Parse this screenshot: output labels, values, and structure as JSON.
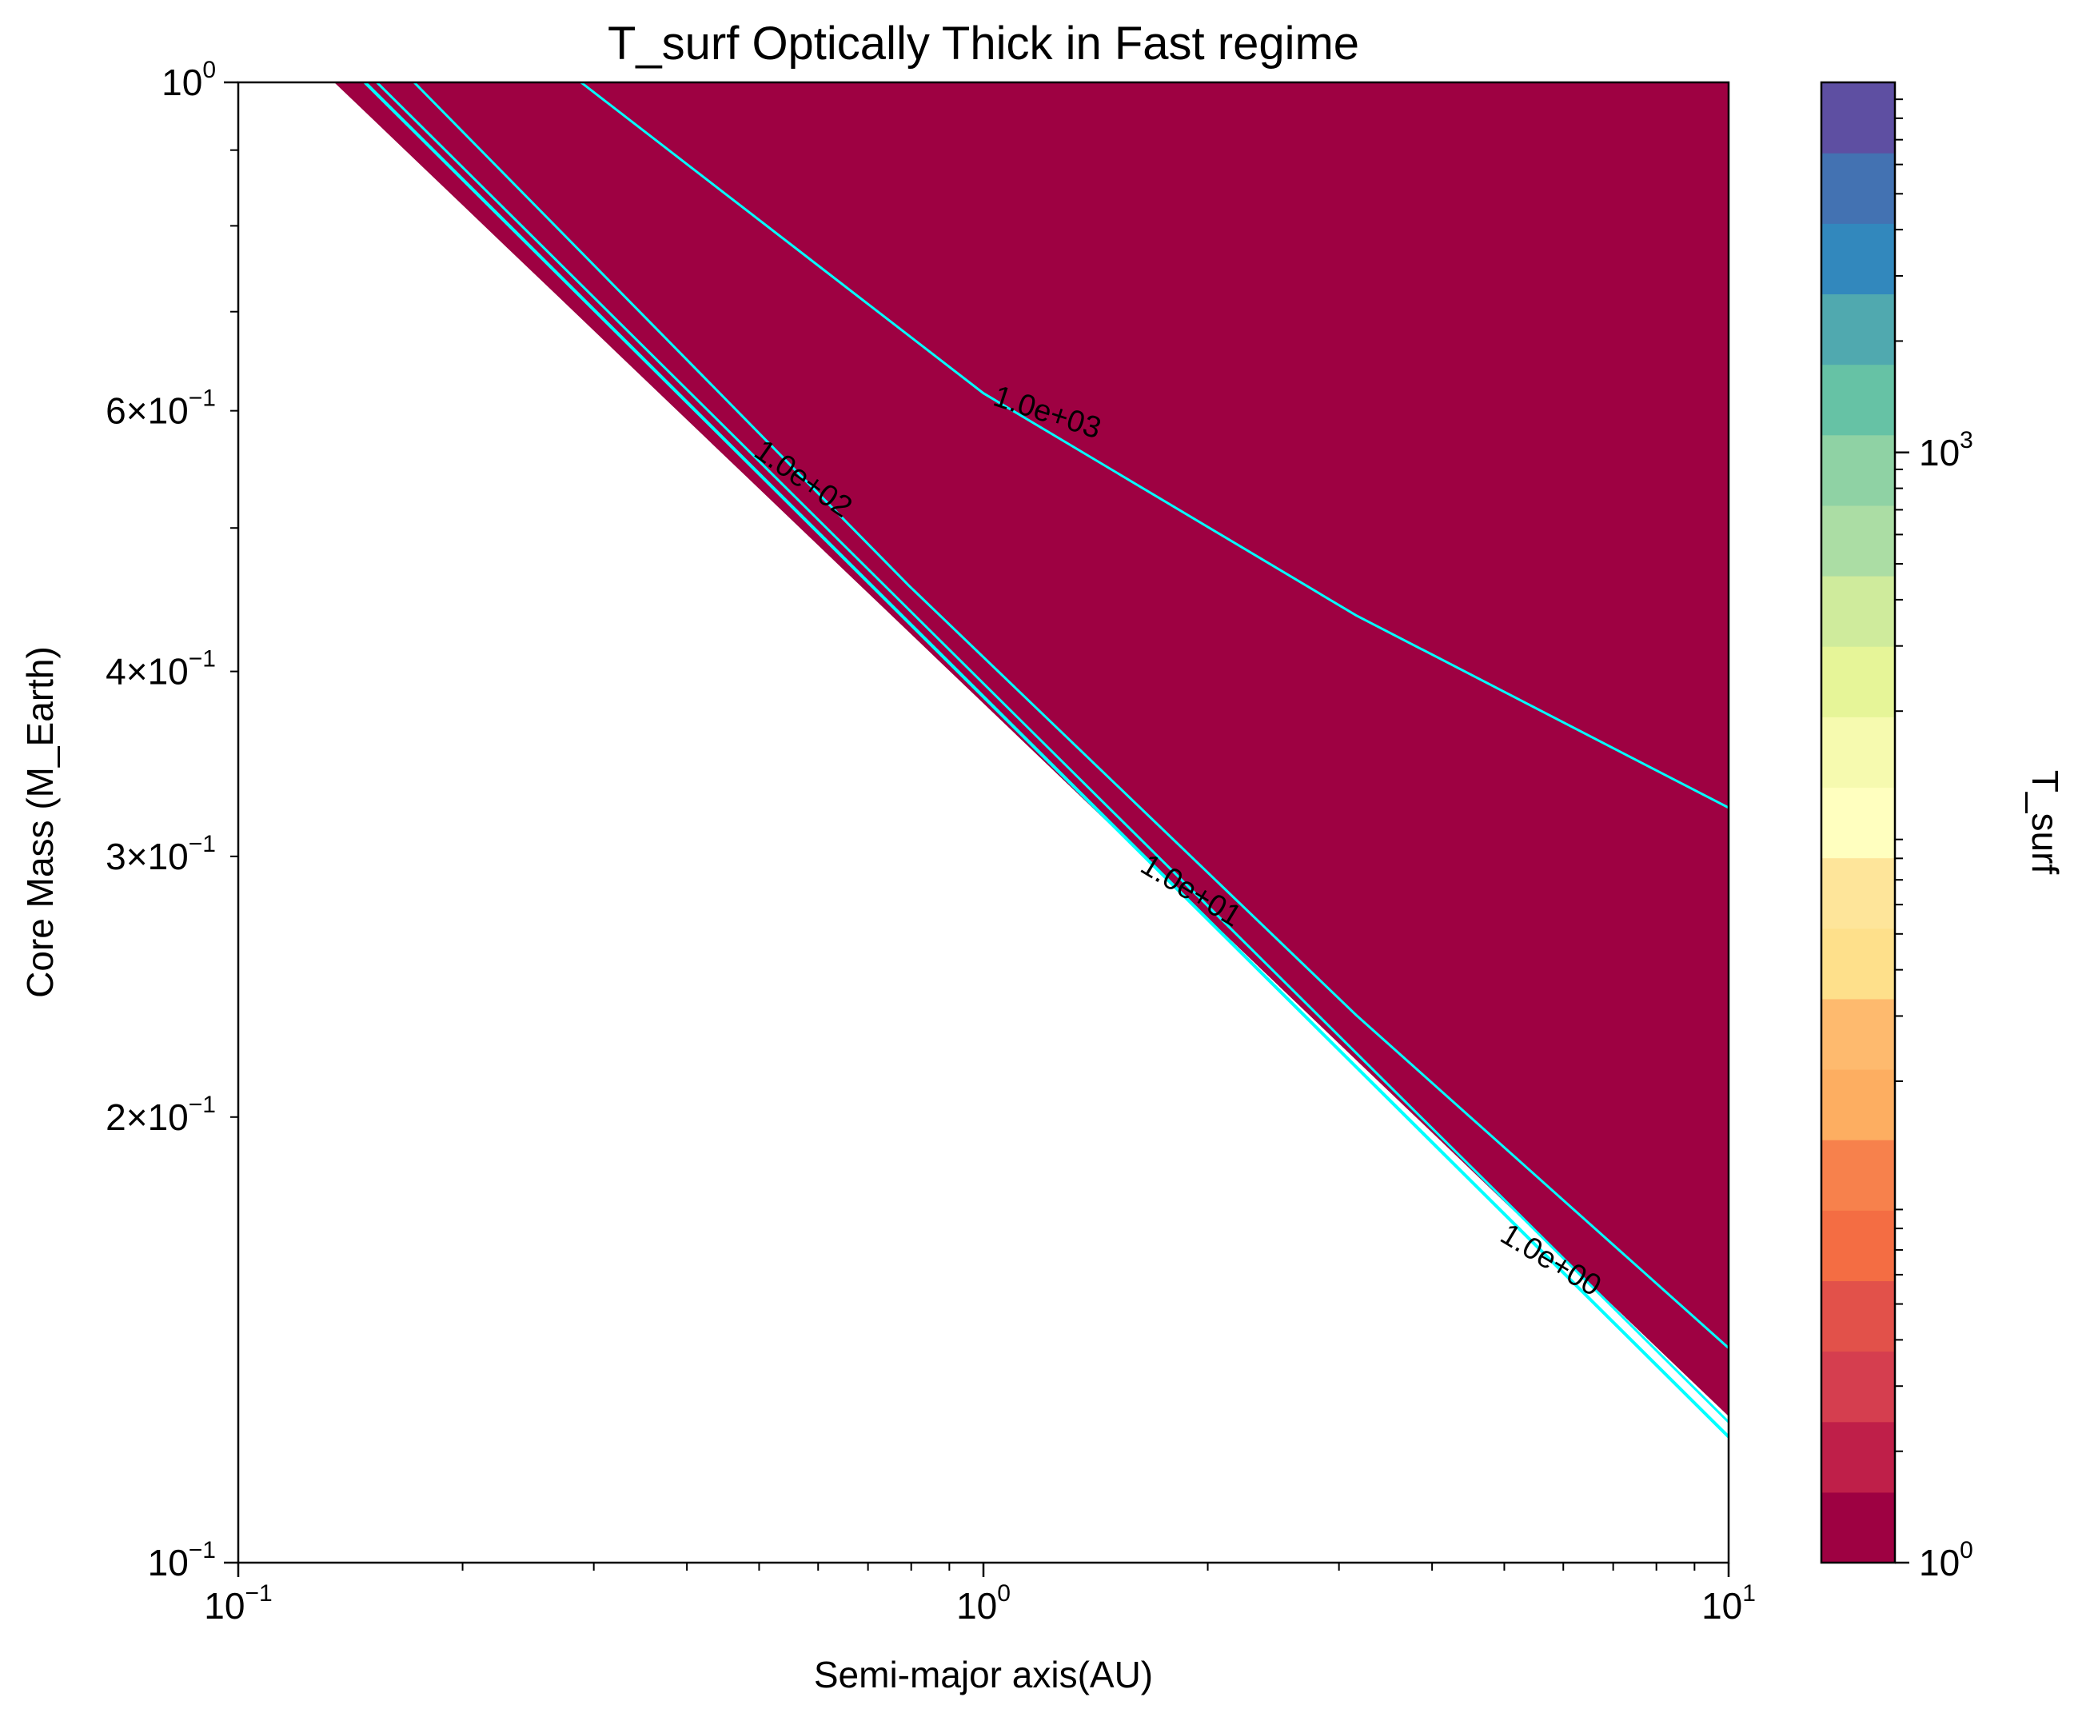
{
  "chart_data": {
    "type": "contour",
    "title": "T_surf Optically Thick in Fast regime",
    "xlabel": "Semi-major axis(AU)",
    "ylabel": "Core Mass (M_Earth)",
    "colorbar_label": "T_surf",
    "xscale": "log",
    "yscale": "log",
    "xlim": [
      0.1,
      10
    ],
    "ylim": [
      0.1,
      1
    ],
    "x_ticks": [
      {
        "value": 0.1,
        "base": "10",
        "exp": "−1"
      },
      {
        "value": 1,
        "base": "10",
        "exp": "0"
      },
      {
        "value": 10,
        "base": "10",
        "exp": "1"
      }
    ],
    "y_ticks": [
      {
        "value": 0.1,
        "base": "10",
        "exp": "−1",
        "mant": ""
      },
      {
        "value": 0.2,
        "base": "10",
        "exp": "−1",
        "mant": "2×"
      },
      {
        "value": 0.3,
        "base": "10",
        "exp": "−1",
        "mant": "3×"
      },
      {
        "value": 0.4,
        "base": "10",
        "exp": "−1",
        "mant": "4×"
      },
      {
        "value": 0.6,
        "base": "10",
        "exp": "−1",
        "mant": "6×"
      },
      {
        "value": 1,
        "base": "10",
        "exp": "0",
        "mant": ""
      }
    ],
    "colorbar_ticks": [
      {
        "value": 1,
        "base": "10",
        "exp": "0"
      },
      {
        "value": 1000,
        "base": "10",
        "exp": "3"
      }
    ],
    "colorbar_range": [
      1,
      10000
    ],
    "colormap": "Spectral",
    "colorbar_levels": [
      "#9e0142",
      "#bf1f49",
      "#d53e4f",
      "#e2514a",
      "#f46d43",
      "#f7814c",
      "#fdae61",
      "#feba6e",
      "#fee08b",
      "#fee59a",
      "#ffffbf",
      "#f6faaf",
      "#e6f598",
      "#cfeb9c",
      "#abdda4",
      "#8fd2a4",
      "#66c2a5",
      "#50a9af",
      "#3288bd",
      "#4372b2",
      "#5e4fa2"
    ],
    "contour_lines": [
      {
        "level": 1,
        "label": "1.0e+00"
      },
      {
        "level": 10,
        "label": "1.0e+01"
      },
      {
        "level": 100,
        "label": "1.0e+02"
      },
      {
        "level": 1000,
        "label": "1.0e+03"
      }
    ],
    "line_color": "#00ffff",
    "undefined_region": "white"
  }
}
